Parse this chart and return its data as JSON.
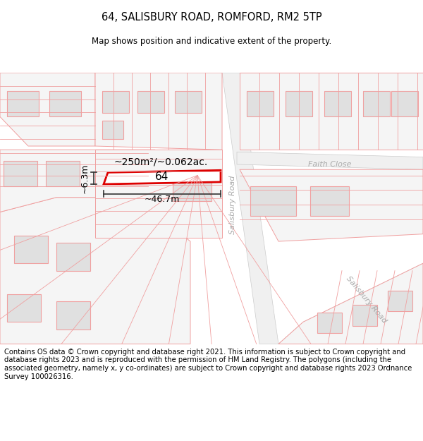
{
  "title": "64, SALISBURY ROAD, ROMFORD, RM2 5TP",
  "subtitle": "Map shows position and indicative extent of the property.",
  "footer": "Contains OS data © Crown copyright and database right 2021. This information is subject to Crown copyright and database rights 2023 and is reproduced with the permission of HM Land Registry. The polygons (including the associated geometry, namely x, y co-ordinates) are subject to Crown copyright and database rights 2023 Ordnance Survey 100026316.",
  "area_label": "~250m²/~0.062ac.",
  "width_label": "~46.7m",
  "height_label": "~6.3m",
  "plot_number": "64",
  "bg_color": "#ffffff",
  "line_color": "#f0a0a0",
  "highlight_color": "#dd0000",
  "building_fill": "#e0e0e0",
  "road_label_color": "#aaaaaa",
  "title_fontsize": 10.5,
  "subtitle_fontsize": 8.5,
  "footer_fontsize": 7.2,
  "map_facecolor": "#ffffff"
}
